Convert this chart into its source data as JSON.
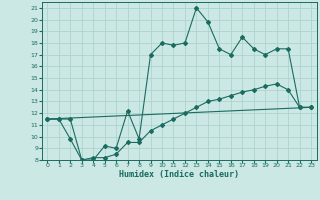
{
  "xlabel": "Humidex (Indice chaleur)",
  "bg_color": "#cce8e5",
  "grid_color": "#aed4d0",
  "line_color": "#1a6b60",
  "xlim": [
    -0.5,
    23.5
  ],
  "ylim": [
    8,
    21.5
  ],
  "xticks": [
    0,
    1,
    2,
    3,
    4,
    5,
    6,
    7,
    8,
    9,
    10,
    11,
    12,
    13,
    14,
    15,
    16,
    17,
    18,
    19,
    20,
    21,
    22,
    23
  ],
  "yticks": [
    8,
    9,
    10,
    11,
    12,
    13,
    14,
    15,
    16,
    17,
    18,
    19,
    20,
    21
  ],
  "series1_x": [
    0,
    1,
    2,
    3,
    4,
    5,
    6,
    7,
    8,
    9,
    10,
    11,
    12,
    13,
    14,
    15,
    16,
    17,
    18,
    19,
    20,
    21,
    22,
    23
  ],
  "series1_y": [
    11.5,
    11.5,
    9.8,
    8.0,
    8.0,
    9.2,
    9.0,
    12.2,
    9.8,
    17.0,
    18.0,
    17.8,
    18.0,
    21.0,
    19.8,
    17.5,
    17.0,
    18.5,
    17.5,
    17.0,
    17.5,
    17.5,
    12.5,
    12.5
  ],
  "series2_x": [
    0,
    1,
    2,
    3,
    4,
    5,
    6,
    7,
    8,
    9,
    10,
    11,
    12,
    13,
    14,
    15,
    16,
    17,
    18,
    19,
    20,
    21,
    22,
    23
  ],
  "series2_y": [
    11.5,
    11.5,
    11.5,
    8.0,
    8.2,
    8.2,
    8.5,
    9.5,
    9.5,
    10.5,
    11.0,
    11.5,
    12.0,
    12.5,
    13.0,
    13.2,
    13.5,
    13.8,
    14.0,
    14.3,
    14.5,
    14.0,
    12.5,
    12.5
  ],
  "series3_x": [
    0,
    23
  ],
  "series3_y": [
    11.5,
    12.5
  ]
}
